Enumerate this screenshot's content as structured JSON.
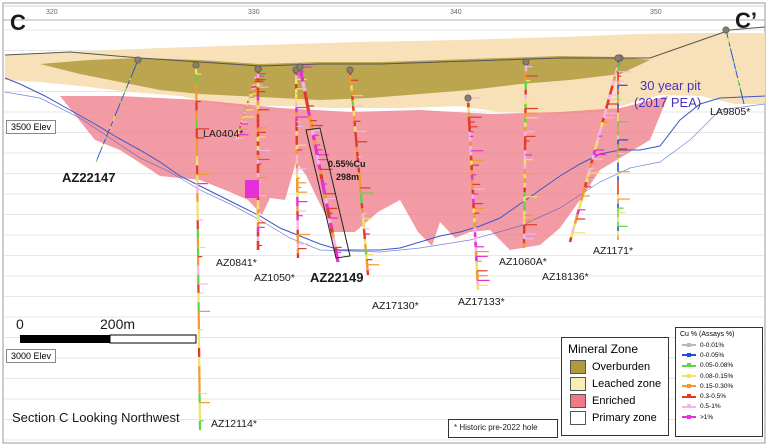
{
  "section": {
    "start_label": "C",
    "end_label": "C’",
    "view_label": "Section C Looking Northwest",
    "grid_ticks": [
      "320",
      "330",
      "340",
      "350"
    ]
  },
  "elevations": {
    "upper": "3500 Elev",
    "lower": "3000 Elev"
  },
  "scale_bar": {
    "start": "0",
    "end": "200m"
  },
  "pit": {
    "label": "30 year pit",
    "sublabel": "(2017 PEA)",
    "color": "#4433bb"
  },
  "highlight_interval": {
    "grade": "0.55%Cu",
    "length": "298m"
  },
  "holes": {
    "az22147": "AZ22147",
    "az22149": "AZ22149",
    "la0404": "LA0404*",
    "az0841": "AZ0841*",
    "az1050": "AZ1050*",
    "az17130": "AZ17130*",
    "az17133": "AZ17133*",
    "az1060a": "AZ1060A*",
    "az18136": "AZ18136*",
    "az1171": "AZ1171*",
    "la9805": "LA9805*",
    "az12114": "AZ12114*"
  },
  "historic_note": "* Historic pre-2022 hole",
  "mineral_legend": {
    "title": "Mineral Zone",
    "items": [
      {
        "label": "Overburden",
        "color": "#b09a3c"
      },
      {
        "label": "Leached zone",
        "color": "#f8eeb4"
      },
      {
        "label": "Enriched",
        "color": "#ef7a86"
      },
      {
        "label": "Primary zone",
        "color": "#ffffff"
      }
    ]
  },
  "cu_legend": {
    "title": "Cu % (Assays %)",
    "items": [
      {
        "label": "0-0.01%",
        "color": "#b8b8b8"
      },
      {
        "label": "0-0.05%",
        "color": "#1f4fd8"
      },
      {
        "label": "0.05-0.08%",
        "color": "#5fd34a"
      },
      {
        "label": "0.08-0.15%",
        "color": "#f0e26a"
      },
      {
        "label": "0.15-0.30%",
        "color": "#f29a2e"
      },
      {
        "label": "0.3-0.5%",
        "color": "#e03a2a"
      },
      {
        "label": "0.5-1%",
        "color": "#f2b6ea"
      },
      {
        "label": ">1%",
        "color": "#e52fd8"
      }
    ]
  },
  "colors": {
    "overburden": "#b09a3c",
    "leached": "#f8e0b8",
    "enriched": "#ef7a86",
    "topography": "#555555"
  }
}
